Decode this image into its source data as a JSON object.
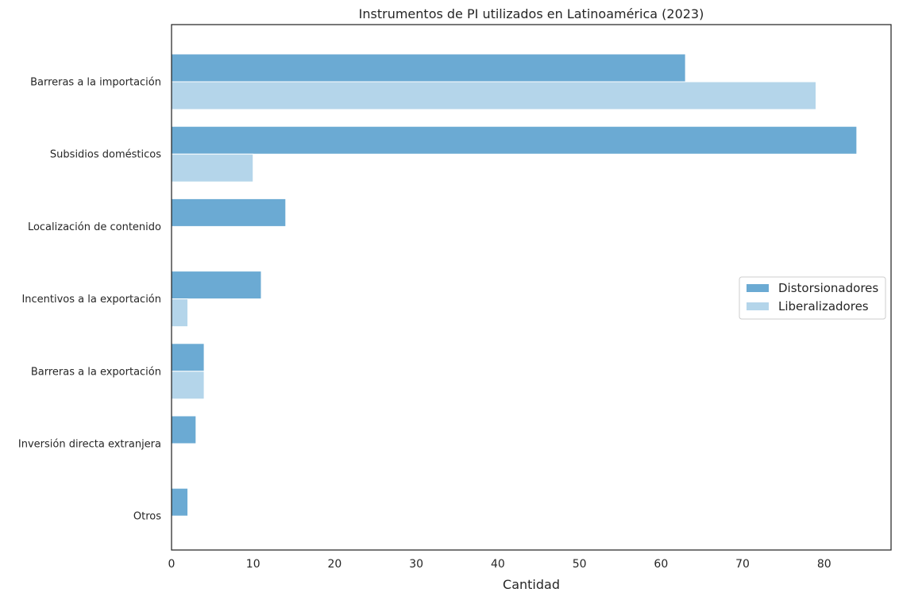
{
  "chart_data": {
    "type": "bar",
    "orientation": "horizontal",
    "title": "Instrumentos de PI utilizados en Latinoamérica (2023)",
    "xlabel": "Cantidad",
    "ylabel": "",
    "categories": [
      "Barreras a la importación",
      "Subsidios domésticos",
      "Localización de contenido",
      "Incentivos a la exportación",
      "Barreras a la exportación",
      "Inversión directa extranjera",
      "Otros"
    ],
    "series": [
      {
        "name": "Distorsionadores",
        "color": "#6baad3",
        "values": [
          63,
          84,
          14,
          11,
          4,
          3,
          2
        ]
      },
      {
        "name": "Liberalizadores",
        "color": "#b4d5ea",
        "values": [
          79,
          10,
          0,
          2,
          4,
          0,
          0
        ]
      }
    ],
    "xlim": [
      0,
      88.2
    ],
    "xticks": [
      0,
      10,
      20,
      30,
      40,
      50,
      60,
      70,
      80
    ],
    "grid": false,
    "legend_position": "center-right"
  }
}
